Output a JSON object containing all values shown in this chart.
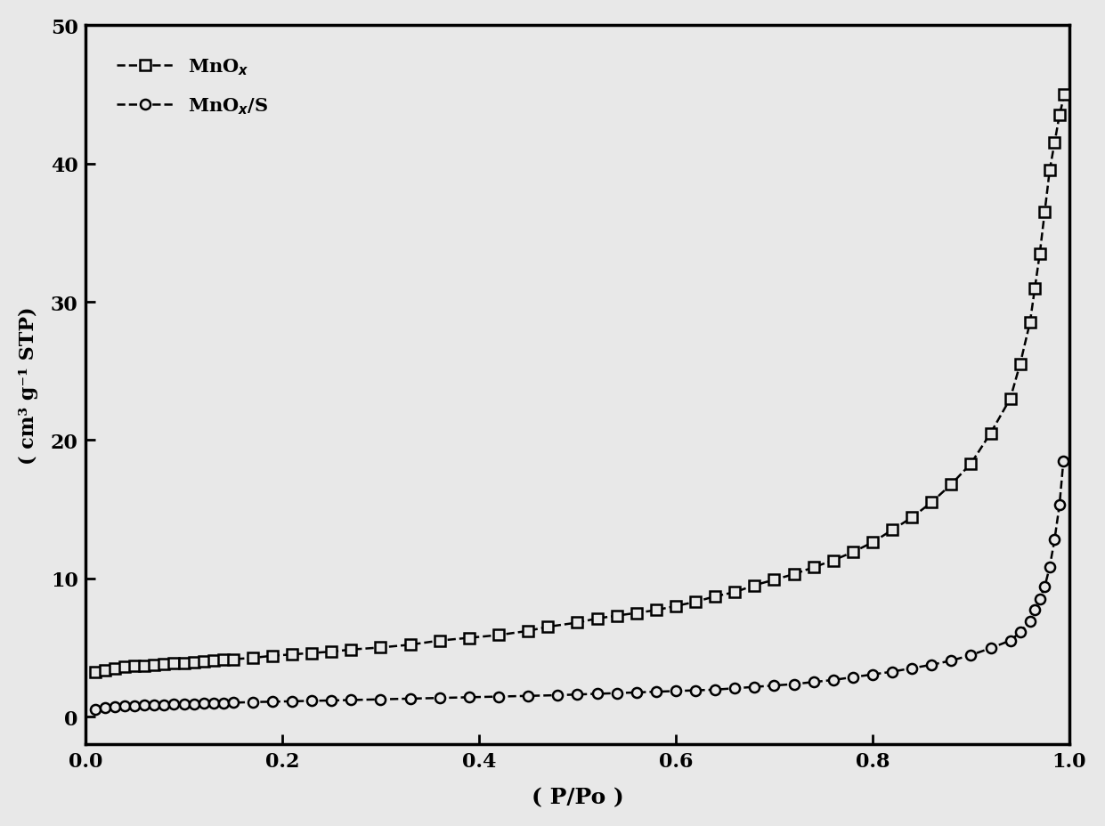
{
  "xlabel": "( P/Po )",
  "ylabel": "( cm³ g⁻¹ STP)",
  "xlim": [
    0.0,
    1.0
  ],
  "ylim": [
    -2,
    50
  ],
  "yticks": [
    0,
    10,
    20,
    30,
    40,
    50
  ],
  "xticks": [
    0.0,
    0.2,
    0.4,
    0.6,
    0.8,
    1.0
  ],
  "xtick_labels": [
    "0.0",
    "0.2",
    "0.4",
    "0.6",
    "0.8",
    "1.0"
  ],
  "legend1": "MnO$_x$",
  "legend2": "MnO$_x$/S",
  "line_color": "#000000",
  "marker_color": "#000000",
  "background_color": "#e8e8e8",
  "plot_bg_color": "#e8e8e8",
  "mno_x": [
    0.01,
    0.02,
    0.03,
    0.04,
    0.05,
    0.06,
    0.07,
    0.08,
    0.09,
    0.1,
    0.11,
    0.12,
    0.13,
    0.14,
    0.15,
    0.17,
    0.19,
    0.21,
    0.23,
    0.25,
    0.27,
    0.3,
    0.33,
    0.36,
    0.39,
    0.42,
    0.45,
    0.47,
    0.5,
    0.52,
    0.54,
    0.56,
    0.58,
    0.6,
    0.62,
    0.64,
    0.66,
    0.68,
    0.7,
    0.72,
    0.74,
    0.76,
    0.78,
    0.8,
    0.82,
    0.84,
    0.86,
    0.88,
    0.9,
    0.92,
    0.94,
    0.95,
    0.96,
    0.965,
    0.97,
    0.975,
    0.98,
    0.985,
    0.99,
    0.995
  ],
  "mno_y": [
    3.2,
    3.35,
    3.5,
    3.6,
    3.65,
    3.7,
    3.75,
    3.8,
    3.85,
    3.9,
    3.95,
    4.0,
    4.05,
    4.1,
    4.15,
    4.25,
    4.4,
    4.5,
    4.6,
    4.7,
    4.85,
    5.0,
    5.2,
    5.5,
    5.7,
    5.9,
    6.2,
    6.5,
    6.8,
    7.1,
    7.3,
    7.5,
    7.7,
    8.0,
    8.3,
    8.7,
    9.0,
    9.5,
    9.9,
    10.3,
    10.8,
    11.3,
    11.9,
    12.6,
    13.5,
    14.4,
    15.5,
    16.8,
    18.3,
    20.5,
    23.0,
    25.5,
    28.5,
    31.0,
    33.5,
    36.5,
    39.5,
    41.5,
    43.5,
    45.0
  ],
  "mnos_x": [
    0.01,
    0.02,
    0.03,
    0.04,
    0.05,
    0.06,
    0.07,
    0.08,
    0.09,
    0.1,
    0.11,
    0.12,
    0.13,
    0.14,
    0.15,
    0.17,
    0.19,
    0.21,
    0.23,
    0.25,
    0.27,
    0.3,
    0.33,
    0.36,
    0.39,
    0.42,
    0.45,
    0.48,
    0.5,
    0.52,
    0.54,
    0.56,
    0.58,
    0.6,
    0.62,
    0.64,
    0.66,
    0.68,
    0.7,
    0.72,
    0.74,
    0.76,
    0.78,
    0.8,
    0.82,
    0.84,
    0.86,
    0.88,
    0.9,
    0.92,
    0.94,
    0.95,
    0.96,
    0.965,
    0.97,
    0.975,
    0.98,
    0.985,
    0.99,
    0.994
  ],
  "mnos_y": [
    0.55,
    0.65,
    0.7,
    0.75,
    0.78,
    0.82,
    0.85,
    0.87,
    0.89,
    0.91,
    0.93,
    0.95,
    0.97,
    0.99,
    1.01,
    1.05,
    1.08,
    1.11,
    1.14,
    1.17,
    1.2,
    1.25,
    1.3,
    1.35,
    1.4,
    1.45,
    1.5,
    1.55,
    1.6,
    1.65,
    1.7,
    1.75,
    1.8,
    1.85,
    1.9,
    1.95,
    2.05,
    2.15,
    2.25,
    2.35,
    2.5,
    2.65,
    2.85,
    3.05,
    3.25,
    3.5,
    3.75,
    4.05,
    4.45,
    4.95,
    5.5,
    6.1,
    6.9,
    7.7,
    8.5,
    9.4,
    10.8,
    12.8,
    15.3,
    18.5
  ]
}
